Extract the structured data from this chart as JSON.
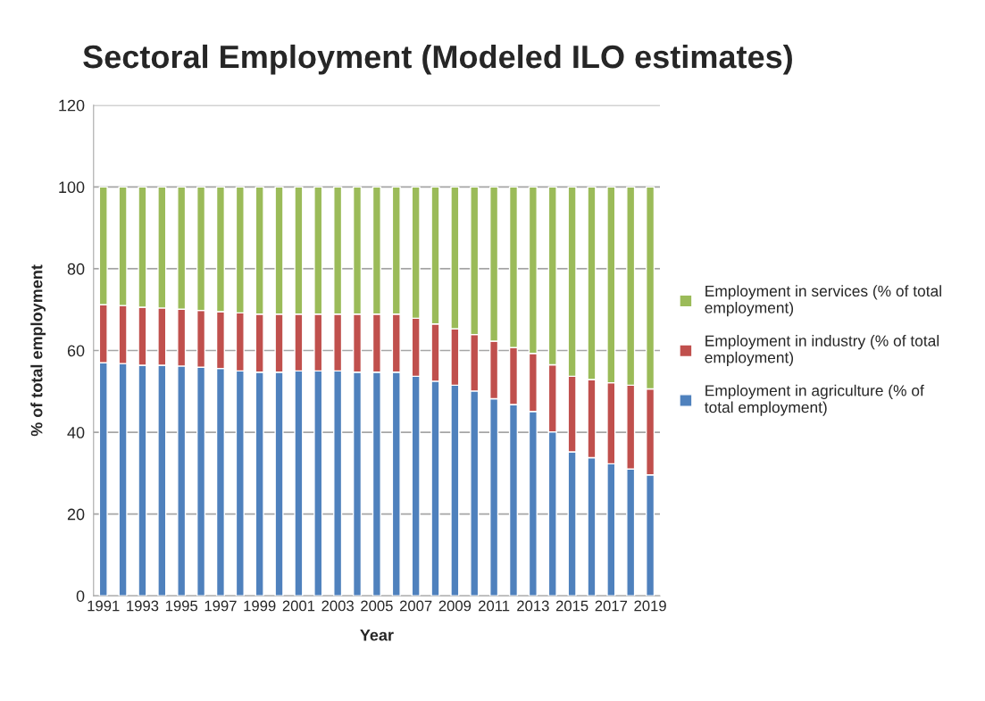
{
  "chart_data": {
    "type": "bar",
    "title": "Sectoral Employment (Modeled ILO estimates)",
    "xlabel": "Year",
    "ylabel": "% of total employment",
    "categories": [
      "1991",
      null,
      "1993",
      null,
      "1995",
      null,
      "1997",
      null,
      "1999",
      null,
      "2001",
      null,
      "2003",
      null,
      "2005",
      null,
      "2007",
      null,
      "2009",
      null,
      "2011",
      null,
      "2013",
      null,
      "2015",
      null,
      "2017",
      null,
      "2019"
    ],
    "stacked": true,
    "series": [
      {
        "name": "Employment in agriculture (% of total employment)",
        "color": "#4f81bd",
        "values": [
          57.0,
          56.8,
          56.4,
          56.4,
          56.2,
          55.9,
          55.6,
          55.0,
          54.7,
          54.7,
          55.0,
          55.0,
          55.0,
          54.7,
          54.7,
          54.7,
          53.7,
          52.5,
          51.5,
          50.1,
          48.2,
          46.8,
          45.1,
          40.1,
          35.2,
          33.8,
          32.3,
          31.0,
          29.6
        ]
      },
      {
        "name": "Employment in industry (% of total employment)",
        "color": "#c0504d",
        "values": [
          14.2,
          14.2,
          14.2,
          14.0,
          13.9,
          13.9,
          13.9,
          14.2,
          14.2,
          14.2,
          13.9,
          13.9,
          13.9,
          14.2,
          14.2,
          14.2,
          14.2,
          14.0,
          13.8,
          13.8,
          14.1,
          13.9,
          14.2,
          16.4,
          18.5,
          19.1,
          19.8,
          20.5,
          21.0
        ]
      },
      {
        "name": "Employment in services (% of total employment)",
        "color": "#9bbb59",
        "values": [
          28.8,
          29.0,
          29.4,
          29.6,
          29.9,
          30.2,
          30.5,
          30.8,
          31.1,
          31.1,
          31.1,
          31.1,
          31.1,
          31.1,
          31.1,
          31.1,
          32.1,
          33.5,
          34.7,
          36.1,
          37.7,
          39.3,
          40.7,
          43.5,
          46.3,
          47.1,
          47.9,
          48.5,
          49.4
        ]
      }
    ],
    "ylim": [
      0,
      120
    ],
    "yticks": [
      0,
      20,
      40,
      60,
      80,
      100,
      120
    ],
    "grid": "y",
    "legend": "right"
  }
}
